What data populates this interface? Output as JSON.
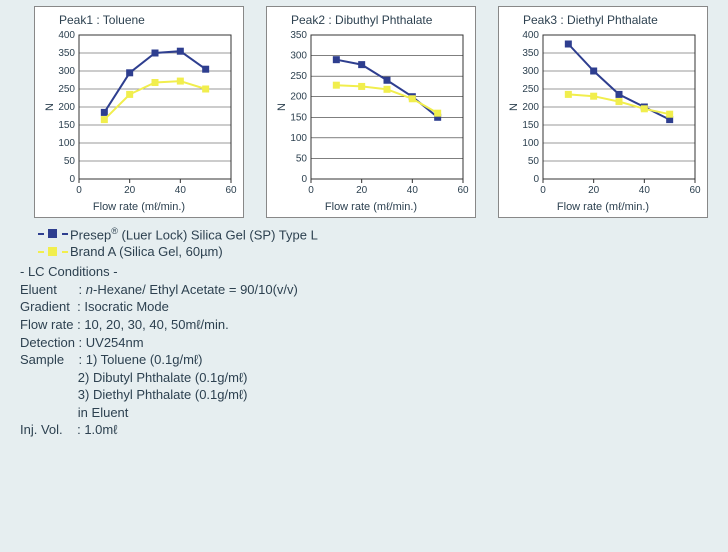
{
  "background_color": "#e6eef0",
  "panel_bg": "#ffffff",
  "panel_border": "#888888",
  "text_color": "#2d4150",
  "series_colors": {
    "presepc": "#2e3e8f",
    "brand_a": "#f1ee4d"
  },
  "series_line_width": 2,
  "marker_size": 7,
  "grid_color": "#333333",
  "tick_color": "#333333",
  "axis_font_size": 10,
  "charts": [
    {
      "title": "Peak1 : Toluene",
      "ylabel": "N",
      "xlabel": "Flow rate  (mℓ/min.)",
      "xlim": [
        0,
        60
      ],
      "xtick_step": 20,
      "ylim": [
        0,
        400
      ],
      "ytick_step": 50,
      "x": [
        10,
        20,
        30,
        40,
        50
      ],
      "series": [
        {
          "key": "presepc",
          "y": [
            185,
            295,
            350,
            355,
            305
          ]
        },
        {
          "key": "brand_a",
          "y": [
            165,
            235,
            268,
            272,
            250
          ]
        }
      ]
    },
    {
      "title": "Peak2 : Dibuthyl Phthalate",
      "ylabel": "N",
      "xlabel": "Flow rate  (mℓ/min.)",
      "xlim": [
        0,
        60
      ],
      "xtick_step": 20,
      "ylim": [
        0,
        350
      ],
      "ytick_step": 50,
      "x": [
        10,
        20,
        30,
        40,
        50
      ],
      "series": [
        {
          "key": "presepc",
          "y": [
            290,
            278,
            240,
            200,
            150
          ]
        },
        {
          "key": "brand_a",
          "y": [
            228,
            225,
            218,
            195,
            160
          ]
        }
      ]
    },
    {
      "title": "Peak3 : Diethyl Phthalate",
      "ylabel": "N",
      "xlabel": "Flow rate  (mℓ/min.)",
      "xlim": [
        0,
        60
      ],
      "xtick_step": 20,
      "ylim": [
        0,
        400
      ],
      "ytick_step": 50,
      "x": [
        10,
        20,
        30,
        40,
        50
      ],
      "series": [
        {
          "key": "presepc",
          "y": [
            375,
            300,
            235,
            200,
            165
          ]
        },
        {
          "key": "brand_a",
          "y": [
            235,
            230,
            215,
            195,
            180
          ]
        }
      ]
    }
  ],
  "legend": {
    "presepc_label_html": "Presep<sup>®</sup> (Luer Lock) Silica Gel (SP) Type L",
    "brand_a_label": "Brand A   (Silica Gel, 60µm)"
  },
  "conditions": {
    "header": "- LC Conditions -",
    "eluent_label": "Eluent",
    "eluent_value_prefix_italic": "n",
    "eluent_value_rest": "-Hexane/ Ethyl Acetate = 90/10(v/v)",
    "gradient_label": "Gradient",
    "gradient_value": "Isocratic Mode",
    "flowrate_label": "Flow rate",
    "flowrate_value": "10, 20, 30, 40, 50mℓ/min.",
    "detection_label": "Detection",
    "detection_value": "UV254nm",
    "sample_label": "Sample",
    "sample_lines": [
      "1) Toluene (0.1g/mℓ)",
      "2) Dibutyl Phthalate (0.1g/mℓ)",
      "3) Diethyl Phthalate (0.1g/mℓ)",
      "in Eluent"
    ],
    "injvol_label": "Inj. Vol.",
    "injvol_value": "1.0mℓ"
  }
}
